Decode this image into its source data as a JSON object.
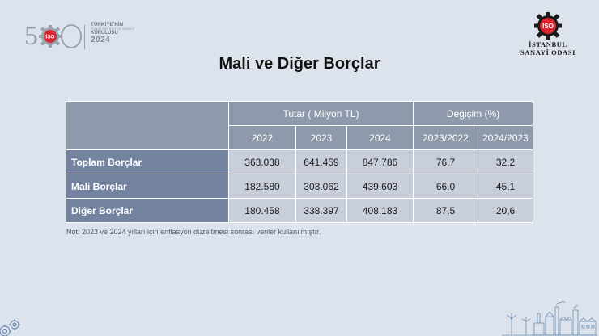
{
  "logo_left": {
    "number": "500",
    "line1": "TÜRKİYE'NİN",
    "line2": "İKİNCİ 500 BÜYÜK SANAYİ",
    "line3": "KURULUŞU",
    "year": "2024",
    "badge": "İSO"
  },
  "logo_right": {
    "badge": "İSO",
    "name_line1": "İSTANBUL",
    "name_line2": "SANAYİ ODASI"
  },
  "title": "Mali ve Diğer Borçlar",
  "table": {
    "group_headers": {
      "tutar": "Tutar ( Milyon TL)",
      "degisim": "Değişim (%)"
    },
    "columns": [
      "2022",
      "2023",
      "2024",
      "2023/2022",
      "2024/2023"
    ],
    "rows": [
      {
        "label": "Toplam Borçlar",
        "values": [
          "363.038",
          "641.459",
          "847.786",
          "76,7",
          "32,2"
        ]
      },
      {
        "label": "Mali Borçlar",
        "values": [
          "182.580",
          "303.062",
          "439.603",
          "66,0",
          "45,1"
        ]
      },
      {
        "label": "Diğer Borçlar",
        "values": [
          "180.458",
          "338.397",
          "408.183",
          "87,5",
          "20,6"
        ]
      }
    ]
  },
  "note": "Not: 2023 ve 2024 yılları için enflasyon düzeltmesi sonrası veriler kullanılmıştır.",
  "colors": {
    "background": "#dde3ec",
    "header": "#8e99ab",
    "row_label": "#7484a0",
    "cell": "#c8cfda",
    "badge_red": "#d9262e"
  }
}
